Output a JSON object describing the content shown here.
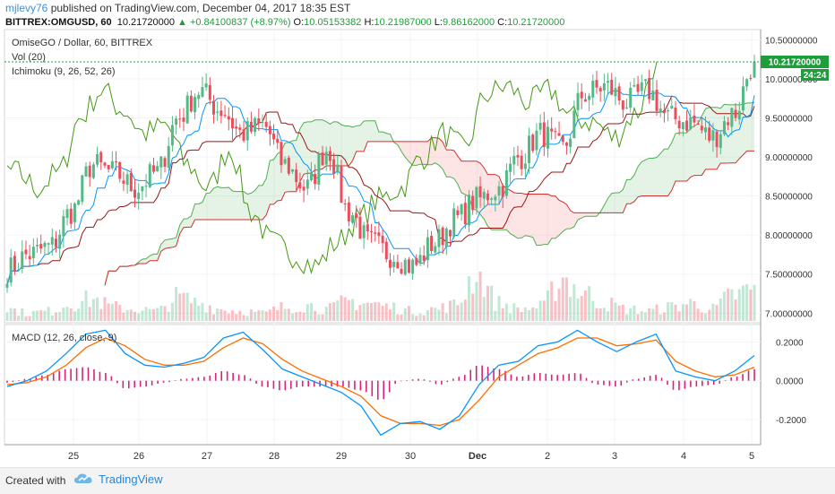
{
  "header": {
    "author": "mjlevy76",
    "published_text": " published on TradingView.com, December 04, 2017 18:35 EST",
    "symbol": "BITTREX:OMGUSD, 60",
    "last": "10.21720000",
    "change": "▲ +0.84100837 (+8.97%)",
    "o_label": "O:",
    "o_value": "10.05153382",
    "h_label": "H:",
    "h_value": "10.21987000",
    "l_label": "L:",
    "l_value": "9.86162000",
    "c_label": "C:",
    "c_value": "10.21720000"
  },
  "footer": {
    "created_with": "Created with",
    "brand": "TradingView"
  },
  "colors": {
    "up": "#53b987",
    "down": "#eb4d5c",
    "tenkan": "#0496ff",
    "kijun": "#991515",
    "chikou": "#459915",
    "span_a": "#4caf50",
    "span_b": "#d32f2f",
    "cloud_bull": "rgba(76,175,80,0.15)",
    "cloud_bear": "rgba(239,83,80,0.15)",
    "macd": "#0496ff",
    "signal": "#ff6d00",
    "hist": "#d6247a",
    "last_price": "#1e9e3a"
  },
  "chart_data": [
    {
      "type": "candlestick",
      "legend": [
        "OmiseGO / Dollar, 60, BITTREX",
        "Vol (20)",
        "Ichimoku (9, 26, 52, 26)"
      ],
      "x_tick_labels": [
        "25",
        "26",
        "27",
        "28",
        "29",
        "30",
        "Dec",
        "2",
        "3",
        "4",
        "5"
      ],
      "y_tick_labels": [
        "10.50000000",
        "10.00000000",
        "9.50000000",
        "9.00000000",
        "8.50000000",
        "8.00000000",
        "7.50000000",
        "7.00000000"
      ],
      "ylim": [
        6.9,
        10.55
      ],
      "last_price": 10.2172,
      "last_price_label": "10.21720000",
      "countdown_label": "24:24",
      "close_series": [
        7.55,
        7.75,
        7.85,
        8.3,
        8.9,
        8.8,
        8.6,
        8.8,
        9.5,
        9.85,
        9.6,
        9.3,
        9.4,
        8.9,
        8.6,
        9.1,
        8.3,
        7.9,
        7.75,
        7.6,
        7.9,
        8.2,
        8.45,
        8.6,
        9.0,
        9.3,
        9.1,
        9.8,
        9.9,
        9.7,
        9.85,
        9.5,
        9.45,
        9.25,
        9.55,
        10.2
      ],
      "volume_label": "Vol (20)",
      "volume_series": [
        0.6,
        0.4,
        0.5,
        0.9,
        1.1,
        0.7,
        0.6,
        0.5,
        1.2,
        0.9,
        0.6,
        0.5,
        0.4,
        0.7,
        0.8,
        0.6,
        1.0,
        0.9,
        0.7,
        0.5,
        0.6,
        0.8,
        2.5,
        0.9,
        0.6,
        0.7,
        2.2,
        1.4,
        0.9,
        0.6,
        0.5,
        0.7,
        0.9,
        0.6,
        1.3,
        1.6
      ]
    },
    {
      "type": "line",
      "legend": "MACD (12, 26, close, 9)",
      "x_tick_labels": [
        "25",
        "26",
        "27",
        "28",
        "29",
        "30",
        "Dec",
        "2",
        "3",
        "4",
        "5"
      ],
      "y_tick_labels": [
        "0.2000",
        "0.0000",
        "-0.2000"
      ],
      "ylim": [
        -0.32,
        0.28
      ],
      "series": [
        {
          "values": [
            -0.03,
            0.0,
            0.05,
            0.14,
            0.24,
            0.26,
            0.14,
            0.08,
            0.07,
            0.09,
            0.12,
            0.22,
            0.25,
            0.16,
            0.06,
            0.02,
            -0.02,
            -0.06,
            -0.13,
            -0.28,
            -0.22,
            -0.21,
            -0.25,
            -0.18,
            -0.02,
            0.08,
            0.1,
            0.18,
            0.2,
            0.26,
            0.2,
            0.15,
            0.2,
            0.24,
            0.05,
            0.02,
            0.0,
            0.05,
            0.13
          ]
        },
        {
          "values": [
            -0.02,
            -0.01,
            0.02,
            0.08,
            0.17,
            0.22,
            0.18,
            0.11,
            0.08,
            0.08,
            0.1,
            0.17,
            0.22,
            0.19,
            0.11,
            0.05,
            0.01,
            -0.03,
            -0.08,
            -0.18,
            -0.22,
            -0.22,
            -0.23,
            -0.2,
            -0.1,
            0.02,
            0.08,
            0.14,
            0.17,
            0.22,
            0.22,
            0.18,
            0.19,
            0.21,
            0.1,
            0.05,
            0.02,
            0.03,
            0.07
          ]
        }
      ]
    }
  ]
}
